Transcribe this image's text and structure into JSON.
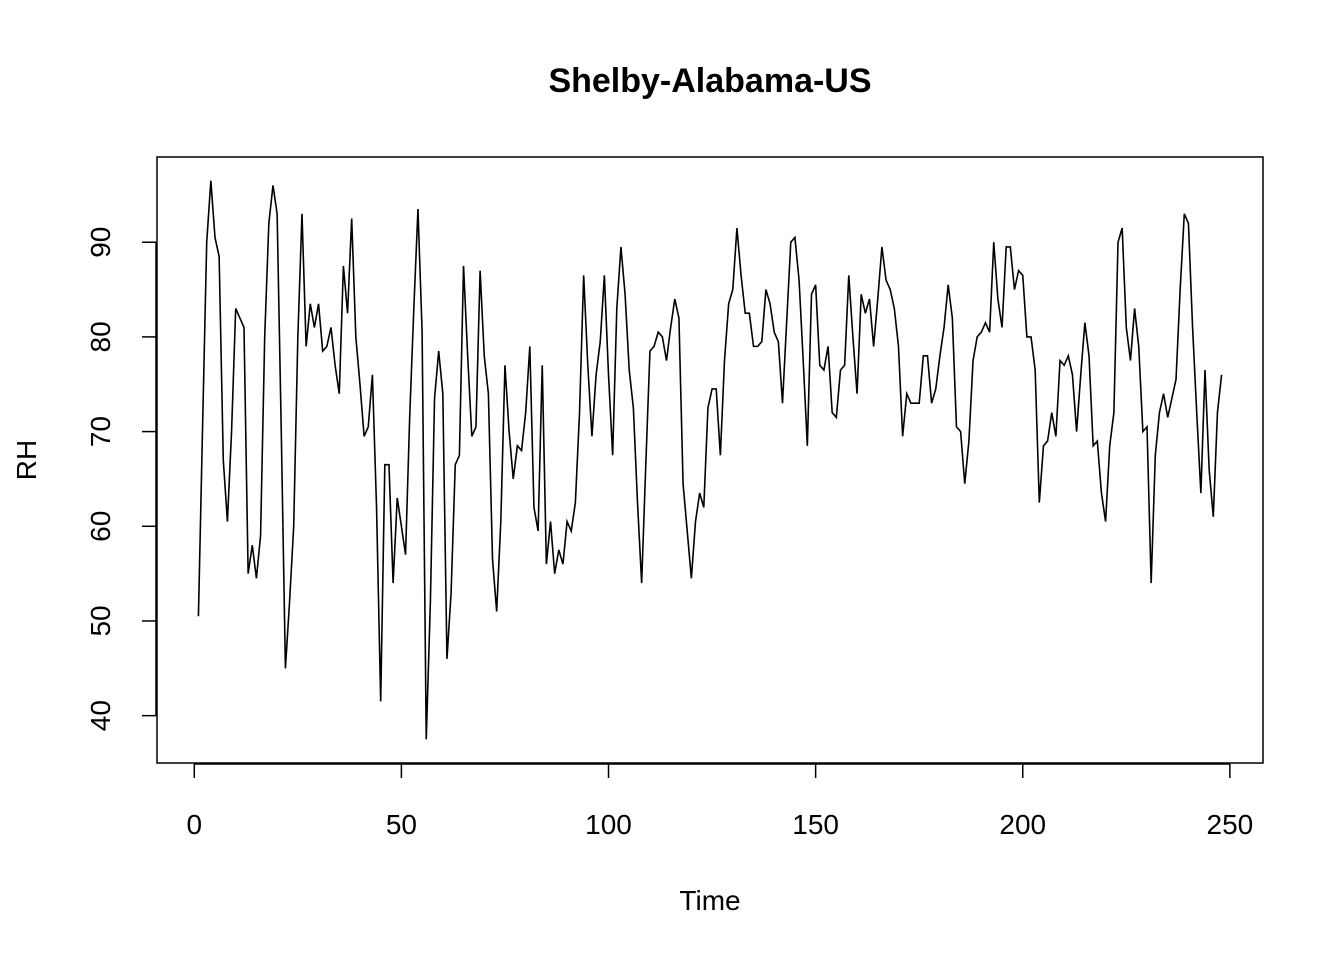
{
  "chart_data": {
    "type": "line",
    "title": "Shelby-Alabama-US",
    "xlabel": "Time",
    "ylabel": "RH",
    "xlim": [
      -9,
      258
    ],
    "ylim": [
      35,
      99
    ],
    "x_ticks": [
      0,
      50,
      100,
      150,
      200,
      250
    ],
    "y_ticks": [
      40,
      50,
      60,
      70,
      80,
      90
    ],
    "grid": false,
    "legend": "none",
    "line_color": "#000000",
    "x_start": 1,
    "values": [
      50.5,
      70.5,
      90.0,
      96.5,
      90.5,
      88.5,
      67.0,
      60.5,
      70.0,
      83.0,
      82.0,
      81.0,
      55.0,
      58.0,
      54.5,
      59.0,
      80.0,
      92.0,
      96.0,
      93.0,
      70.0,
      45.0,
      52.0,
      60.0,
      80.0,
      93.0,
      79.0,
      83.5,
      81.0,
      83.5,
      78.5,
      79.0,
      81.0,
      77.0,
      74.0,
      87.5,
      82.5,
      92.5,
      80.0,
      75.0,
      69.5,
      70.5,
      76.0,
      62.0,
      41.5,
      66.5,
      66.5,
      54.0,
      63.0,
      60.0,
      57.0,
      71.5,
      83.0,
      93.5,
      80.5,
      37.5,
      52.0,
      73.5,
      78.5,
      74.0,
      46.0,
      53.0,
      66.5,
      67.5,
      87.5,
      78.0,
      69.5,
      70.5,
      87.0,
      78.0,
      74.0,
      56.5,
      51.0,
      60.5,
      77.0,
      70.0,
      65.0,
      68.5,
      68.0,
      72.0,
      79.0,
      62.0,
      59.5,
      77.0,
      56.0,
      60.5,
      55.0,
      57.5,
      56.0,
      60.5,
      59.5,
      62.5,
      72.0,
      86.5,
      77.0,
      69.5,
      76.0,
      79.5,
      86.5,
      76.0,
      67.5,
      83.0,
      89.5,
      84.5,
      76.5,
      72.5,
      62.5,
      54.0,
      66.5,
      78.5,
      79.0,
      80.5,
      80.0,
      77.5,
      81.0,
      84.0,
      82.0,
      64.5,
      59.5,
      54.5,
      60.5,
      63.5,
      62.0,
      72.5,
      74.5,
      74.5,
      67.5,
      77.5,
      83.5,
      85.0,
      91.5,
      86.5,
      82.5,
      82.5,
      79.0,
      79.0,
      79.5,
      85.0,
      83.5,
      80.5,
      79.5,
      73.0,
      81.5,
      90.0,
      90.5,
      86.0,
      77.5,
      68.5,
      84.5,
      85.5,
      77.0,
      76.5,
      79.0,
      72.0,
      71.5,
      76.5,
      77.0,
      86.5,
      80.0,
      74.0,
      84.5,
      82.5,
      84.0,
      79.0,
      84.0,
      89.5,
      86.0,
      85.0,
      83.0,
      79.0,
      69.5,
      74.0,
      73.0,
      73.0,
      73.0,
      78.0,
      78.0,
      73.0,
      74.5,
      78.0,
      81.0,
      85.5,
      82.0,
      70.5,
      70.0,
      64.5,
      69.0,
      77.5,
      80.0,
      80.5,
      81.5,
      80.5,
      90.0,
      84.0,
      81.0,
      89.5,
      89.5,
      85.0,
      87.0,
      86.5,
      80.0,
      80.0,
      76.5,
      62.5,
      68.5,
      69.0,
      72.0,
      69.5,
      77.5,
      77.0,
      78.0,
      76.0,
      70.0,
      76.0,
      81.5,
      78.0,
      68.5,
      69.0,
      63.5,
      60.5,
      68.5,
      72.0,
      90.0,
      91.5,
      81.0,
      77.5,
      83.0,
      79.0,
      70.0,
      70.5,
      54.0,
      67.5,
      72.0,
      74.0,
      71.5,
      73.5,
      75.5,
      85.0,
      93.0,
      92.0,
      81.0,
      72.0,
      63.5,
      76.5,
      66.0,
      61.0,
      72.0,
      76.0
    ]
  }
}
